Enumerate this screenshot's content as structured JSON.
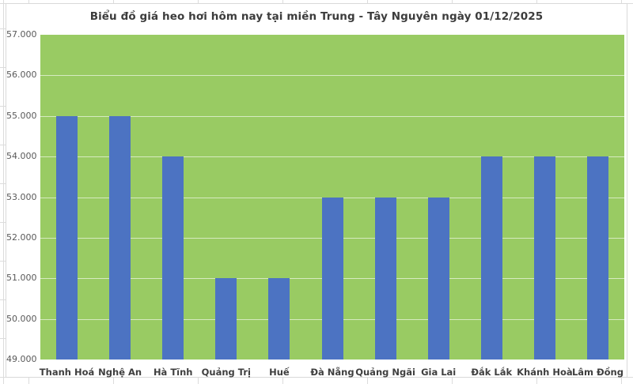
{
  "chart_data": {
    "type": "bar",
    "title": "Biểu đồ giá heo hơi hôm nay tại miền Trung - Tây Nguyên ngày 01/12/2025",
    "categories": [
      "Thanh Hoá",
      "Nghệ An",
      "Hà Tĩnh",
      "Quảng Trị",
      "Huế",
      "Đà Nẵng",
      "Quảng Ngãi",
      "Gia Lai",
      "Đắk Lắk",
      "Khánh Hoà",
      "Lâm Đồng"
    ],
    "values": [
      55000,
      55000,
      54000,
      51000,
      51000,
      53000,
      53000,
      53000,
      54000,
      54000,
      54000
    ],
    "xlabel": "",
    "ylabel": "",
    "ylim": [
      49000,
      57000
    ],
    "ytick_step": 1000,
    "ytick_labels": [
      "49.000",
      "50.000",
      "51.000",
      "52.000",
      "53.000",
      "54.000",
      "55.000",
      "56.000",
      "57.000"
    ],
    "grid": true,
    "legend": false,
    "colors": {
      "bar": "#4C73C2",
      "plot_bg": "#99CB63",
      "gridline": "#FFFFFF99",
      "title_text": "#3C3C3C",
      "ytick_text": "#595959",
      "xtick_text": "#3F3F3F",
      "chart_border": "#D9D9D9"
    }
  }
}
